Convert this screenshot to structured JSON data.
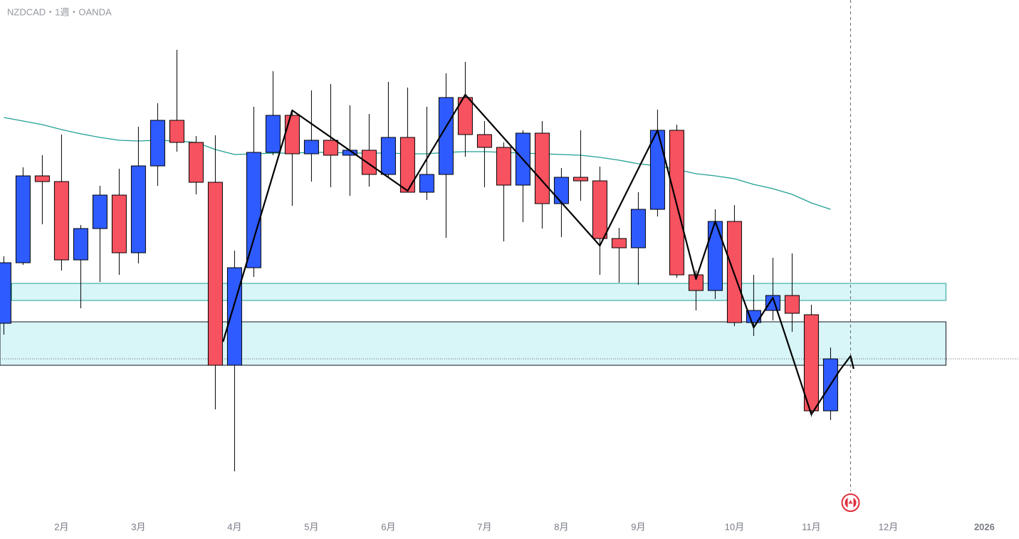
{
  "chart_data": {
    "type": "candlestick",
    "title": "NZDCAD・1週・OANDA",
    "xlim": [
      -0.2,
      52.8
    ],
    "ylim": [
      0.7742,
      0.847
    ],
    "xticks": [
      {
        "value": 3,
        "label": "2月"
      },
      {
        "value": 7,
        "label": "3月"
      },
      {
        "value": 12,
        "label": "4月"
      },
      {
        "value": 16,
        "label": "5月"
      },
      {
        "value": 20,
        "label": "6月"
      },
      {
        "value": 25,
        "label": "7月"
      },
      {
        "value": 29,
        "label": "8月"
      },
      {
        "value": 33,
        "label": "9月"
      },
      {
        "value": 38,
        "label": "10月"
      },
      {
        "value": 42,
        "label": "11月"
      },
      {
        "value": 46,
        "label": "12月"
      },
      {
        "value": 51,
        "label": "2026"
      }
    ],
    "up_color": "#2e5bff",
    "down_color": "#f7525f",
    "open": [
      0.8016,
      0.8101,
      0.8223,
      0.8215,
      0.8105,
      0.8149,
      0.8196,
      0.8115,
      0.8237,
      0.8301,
      0.827,
      0.8214,
      0.7957,
      0.8094,
      0.8256,
      0.8308,
      0.8254,
      0.8273,
      0.8252,
      0.8259,
      0.8225,
      0.8277,
      0.82,
      0.8225,
      0.8333,
      0.8281,
      0.8263,
      0.821,
      0.8283,
      0.8184,
      0.8221,
      0.8216,
      0.8135,
      0.8122,
      0.8176,
      0.8287,
      0.8084,
      0.8062,
      0.8159,
      0.8017,
      0.8034,
      0.8055,
      0.8028,
      0.7893
    ],
    "high": [
      0.811,
      0.8235,
      0.8252,
      0.8281,
      0.8154,
      0.8209,
      0.8233,
      0.8292,
      0.8325,
      0.84,
      0.8279,
      0.828,
      0.8118,
      0.832,
      0.837,
      0.8315,
      0.8343,
      0.8352,
      0.8322,
      0.831,
      0.8355,
      0.8347,
      0.832,
      0.8367,
      0.8383,
      0.83,
      0.827,
      0.8287,
      0.83,
      0.8234,
      0.8287,
      0.8236,
      0.815,
      0.82,
      0.8316,
      0.8295,
      0.809,
      0.8176,
      0.8182,
      0.8084,
      0.8108,
      0.8114,
      0.8042,
      0.7982
    ],
    "low": [
      0.8,
      0.8098,
      0.8155,
      0.809,
      0.8037,
      0.8074,
      0.8084,
      0.81,
      0.8209,
      0.8257,
      0.8197,
      0.7895,
      0.7808,
      0.8081,
      0.8252,
      0.8181,
      0.8215,
      0.8207,
      0.8195,
      0.8208,
      0.822,
      0.82,
      0.8189,
      0.8136,
      0.825,
      0.8207,
      0.8131,
      0.8158,
      0.8149,
      0.8137,
      0.8188,
      0.8084,
      0.8073,
      0.807,
      0.8166,
      0.808,
      0.8034,
      0.805,
      0.8012,
      0.7998,
      0.802,
      0.8004,
      0.7885,
      0.788
    ],
    "close": [
      0.8101,
      0.8223,
      0.8215,
      0.8105,
      0.8149,
      0.8196,
      0.8115,
      0.8237,
      0.8301,
      0.827,
      0.8214,
      0.7957,
      0.8094,
      0.8256,
      0.8308,
      0.8254,
      0.8273,
      0.8252,
      0.8259,
      0.8225,
      0.8277,
      0.82,
      0.8225,
      0.8333,
      0.8281,
      0.8263,
      0.821,
      0.8283,
      0.8184,
      0.8221,
      0.8216,
      0.8135,
      0.8122,
      0.8176,
      0.8287,
      0.8084,
      0.8062,
      0.8159,
      0.8017,
      0.8034,
      0.8055,
      0.803,
      0.7893,
      0.7966
    ],
    "ma": {
      "color": "#22a094",
      "values": [
        0.8305,
        0.83,
        0.8295,
        0.8288,
        0.8282,
        0.8277,
        0.8273,
        0.8272,
        0.8273,
        0.8272,
        0.827,
        0.826,
        0.8253,
        0.8254,
        0.8255,
        0.8255,
        0.8256,
        0.8256,
        0.8255,
        0.8255,
        0.8255,
        0.8254,
        0.8254,
        0.8256,
        0.8257,
        0.8257,
        0.8256,
        0.8255,
        0.8254,
        0.8253,
        0.8252,
        0.8249,
        0.8245,
        0.824,
        0.8237,
        0.8232,
        0.8226,
        0.8223,
        0.8219,
        0.8211,
        0.8205,
        0.8197,
        0.8185,
        0.8176
      ]
    },
    "zigzag": {
      "color": "#000000",
      "x": [
        11.4,
        15,
        21,
        24,
        31,
        34,
        36,
        37,
        39,
        40,
        42,
        43.48,
        44.04,
        44.2
      ],
      "y": [
        0.799,
        0.8315,
        0.8202,
        0.8337,
        0.8125,
        0.8287,
        0.8078,
        0.8159,
        0.801,
        0.8052,
        0.7888,
        0.795,
        0.797,
        0.7952
      ]
    },
    "zones": [
      {
        "color": "#22a094",
        "x": [
          0.4,
          49
        ],
        "top": 0.8072,
        "bottom": 0.8048
      },
      {
        "color": "#131722",
        "x": [
          -0.2,
          49
        ],
        "top": 0.8018,
        "bottom": 0.7957
      }
    ],
    "crosshair": {
      "x": 44.04,
      "y": 0.7966
    }
  }
}
